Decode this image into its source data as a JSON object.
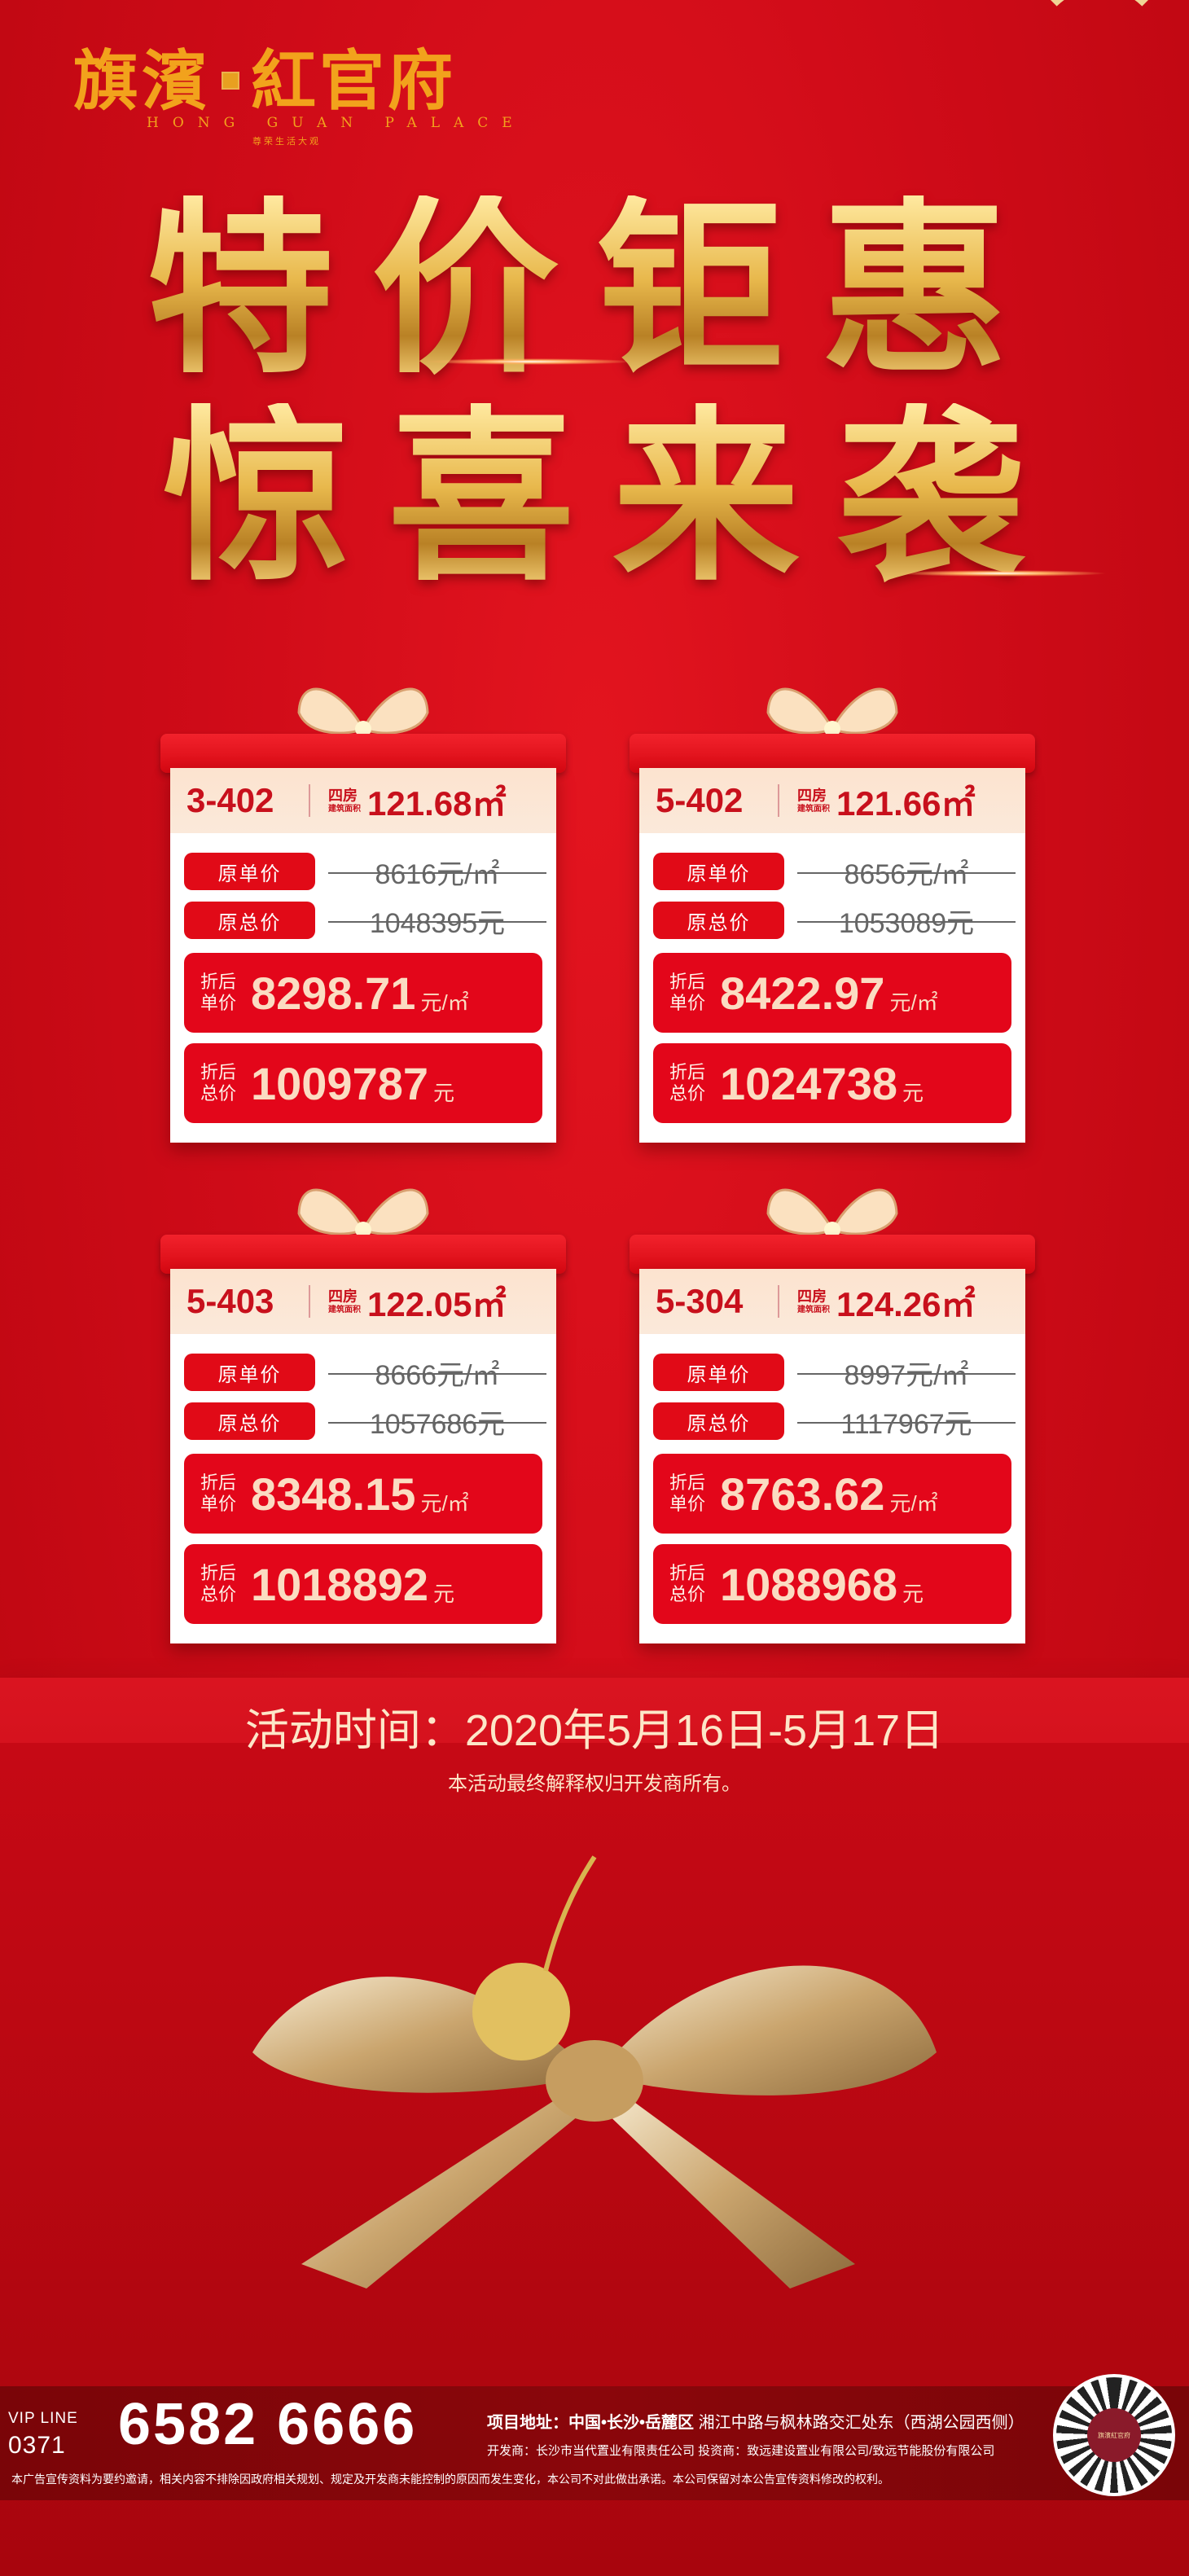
{
  "logo": {
    "name_left": "旗濱",
    "name_right": "紅官府",
    "seal": "府",
    "english": "HONG GUAN PALACE",
    "tagline": "尊荣生活大观"
  },
  "headline": {
    "line1": "特价钜惠",
    "line2": "惊喜来袭"
  },
  "cards": [
    {
      "unit": "3-402",
      "rooms": "四房",
      "area_label": "建筑面积",
      "area": "121.68㎡",
      "orig_unit_label": "原单价",
      "orig_unit": "8616元/㎡",
      "orig_total_label": "原总价",
      "orig_total": "1048395元",
      "disc_unit_label": "折后单价",
      "disc_unit": "8298.71",
      "disc_unit_suffix": "元/㎡",
      "disc_total_label": "折后总价",
      "disc_total": "1009787",
      "disc_total_suffix": "元"
    },
    {
      "unit": "5-402",
      "rooms": "四房",
      "area_label": "建筑面积",
      "area": "121.66㎡",
      "orig_unit_label": "原单价",
      "orig_unit": "8656元/㎡",
      "orig_total_label": "原总价",
      "orig_total": "1053089元",
      "disc_unit_label": "折后单价",
      "disc_unit": "8422.97",
      "disc_unit_suffix": "元/㎡",
      "disc_total_label": "折后总价",
      "disc_total": "1024738",
      "disc_total_suffix": "元"
    },
    {
      "unit": "5-403",
      "rooms": "四房",
      "area_label": "建筑面积",
      "area": "122.05㎡",
      "orig_unit_label": "原单价",
      "orig_unit": "8666元/㎡",
      "orig_total_label": "原总价",
      "orig_total": "1057686元",
      "disc_unit_label": "折后单价",
      "disc_unit": "8348.15",
      "disc_unit_suffix": "元/㎡",
      "disc_total_label": "折后总价",
      "disc_total": "1018892",
      "disc_total_suffix": "元"
    },
    {
      "unit": "5-304",
      "rooms": "四房",
      "area_label": "建筑面积",
      "area": "124.26㎡",
      "orig_unit_label": "原单价",
      "orig_unit": "8997元/㎡",
      "orig_total_label": "原总价",
      "orig_total": "1117967元",
      "disc_unit_label": "折后单价",
      "disc_unit": "8763.62",
      "disc_unit_suffix": "元/㎡",
      "disc_total_label": "折后总价",
      "disc_total": "1088968",
      "disc_total_suffix": "元"
    }
  ],
  "event": {
    "date": "活动时间：2020年5月16日-5月17日",
    "disclaimer": "本活动最终解释权归开发商所有。"
  },
  "footer": {
    "vip_label": "VIP LINE",
    "area_code": "0371",
    "phone": "6582 6666",
    "address_label": "项目地址：中国•长沙•岳麓区",
    "address": "湘江中路与枫林路交汇处东（西湖公园西侧）",
    "developer": "开发商：长沙市当代置业有限责任公司   投资商：致远建设置业有限公司/致远节能股份有限公司",
    "legal": "本广告宣传资料为要约邀请，相关内容不排除因政府相关规划、规定及开发商未能控制的原因而发生变化，本公司不对此做出承诺。本公司保留对本公告宣传资料修改的权利。",
    "qr_label": "旗濱紅官府"
  },
  "colors": {
    "primary_red": "#e3061a",
    "gold": "#e8b84c",
    "cream": "#fbdcc2",
    "footer": "#7a0508"
  }
}
